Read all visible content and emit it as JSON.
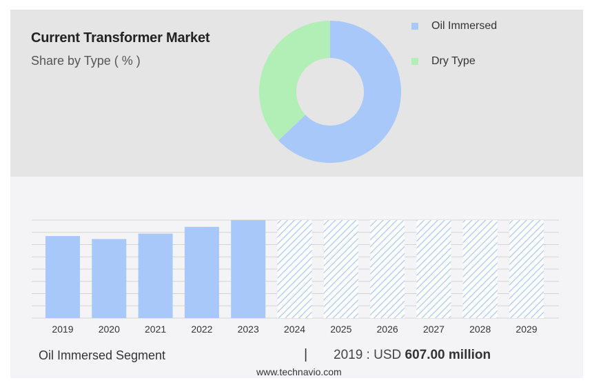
{
  "header": {
    "title": "Current Transformer Market",
    "subtitle": "Share by Type ( % )"
  },
  "legend": [
    {
      "label": "Oil Immersed",
      "color": "#a8c8fa"
    },
    {
      "label": "Dry Type",
      "color": "#b2efb7"
    }
  ],
  "footer": {
    "segment": "Oil Immersed Segment",
    "separator": "|",
    "year_label": "2019 : USD",
    "value_label": "607.00 million",
    "source": "www.technavio.com"
  },
  "chart_data": [
    {
      "type": "pie",
      "variant": "donut",
      "labels": [
        "Oil Immersed",
        "Dry Type"
      ],
      "values": [
        63,
        37
      ],
      "colors": [
        "#a8c8fa",
        "#b2efb7"
      ]
    },
    {
      "type": "bar",
      "categories": [
        "2019",
        "2020",
        "2021",
        "2022",
        "2023",
        "2024",
        "2025",
        "2026",
        "2027",
        "2028",
        "2029"
      ],
      "values": [
        607,
        585,
        625,
        675,
        725,
        null,
        null,
        null,
        null,
        null,
        null
      ],
      "forecast_categories": [
        "2024",
        "2025",
        "2026",
        "2027",
        "2028",
        "2029"
      ],
      "series_color": "#a8c8fa",
      "grid": true,
      "ylim": [
        0,
        725
      ]
    }
  ]
}
